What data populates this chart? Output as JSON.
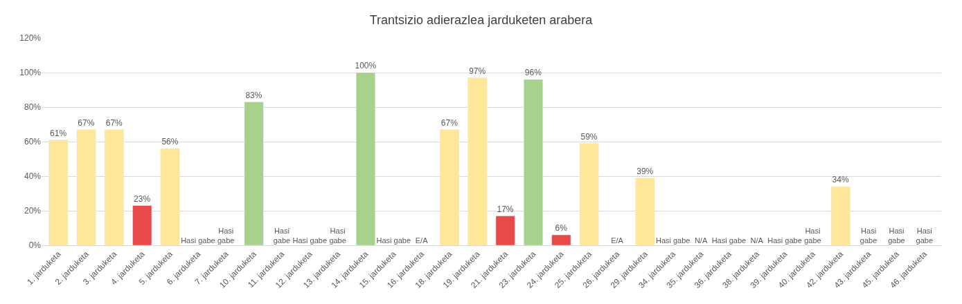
{
  "chart_data": {
    "type": "bar",
    "title": "Trantsizio adierazlea jarduketen arabera",
    "categories": [
      "1. jarduketa",
      "2. jarduketa",
      "3. jarduketa",
      "4. jarduketa",
      "5. jarduketa",
      "6. jarduketa",
      "7. jarduketa",
      "10. jarduketa",
      "11. jarduketa",
      "12. jarduketa",
      "13. jarduketa",
      "14. jarduketa",
      "15. jarduketa",
      "16. jarduketa",
      "18. jarduketa",
      "19. jarduketa",
      "21. jarduketa",
      "23. jarduketa",
      "24. jarduketa",
      "25. jarduketa",
      "26. jarduketa",
      "29. jarduketa",
      "34. jarduketa",
      "35. jarduketa",
      "36. jarduketa",
      "38. jarduketa",
      "39. jarduketa",
      "40. jarduketa",
      "42. jarduketa",
      "43. jarduketa",
      "45. jarduketa",
      "46. jarduketa"
    ],
    "values": [
      61,
      67,
      67,
      23,
      56,
      null,
      null,
      83,
      null,
      null,
      null,
      100,
      null,
      null,
      67,
      97,
      17,
      96,
      6,
      59,
      null,
      39,
      null,
      null,
      null,
      null,
      null,
      null,
      34,
      null,
      null,
      null
    ],
    "colors": [
      "#ffe699",
      "#ffe699",
      "#ffe699",
      "#e84a4a",
      "#ffe699",
      null,
      null,
      "#a9d18e",
      null,
      null,
      null,
      "#a9d18e",
      null,
      null,
      "#ffe699",
      "#ffe699",
      "#e84a4a",
      "#a9d18e",
      "#e84a4a",
      "#ffe699",
      null,
      "#ffe699",
      null,
      null,
      null,
      null,
      null,
      null,
      "#ffe699",
      null,
      null,
      null
    ],
    "value_labels": [
      "61%",
      "67%",
      "67%",
      "23%",
      "56%",
      "Hasi gabe",
      "Hasi\ngabe",
      "83%",
      "Hasi\ngabe",
      "Hasi gabe",
      "Hasi\ngabe",
      "100%",
      "Hasi gabe",
      "E/A",
      "67%",
      "97%",
      "17%",
      "96%",
      "6%",
      "59%",
      "E/A",
      "39%",
      "Hasi gabe",
      "N/A",
      "Hasi gabe",
      "N/A",
      "Hasi gabe",
      "Hasi\ngabe",
      "34%",
      "Hasi\ngabe",
      "Hasi\ngabe",
      "Hasi\ngabe"
    ],
    "ylim": [
      0,
      120
    ],
    "yticks": [
      {
        "value": 0,
        "label": "0%"
      },
      {
        "value": 20,
        "label": "20%"
      },
      {
        "value": 40,
        "label": "40%"
      },
      {
        "value": 60,
        "label": "60%"
      },
      {
        "value": 80,
        "label": "80%"
      },
      {
        "value": 100,
        "label": "100%"
      },
      {
        "value": 120,
        "label": "120%"
      }
    ],
    "grid": "y"
  }
}
